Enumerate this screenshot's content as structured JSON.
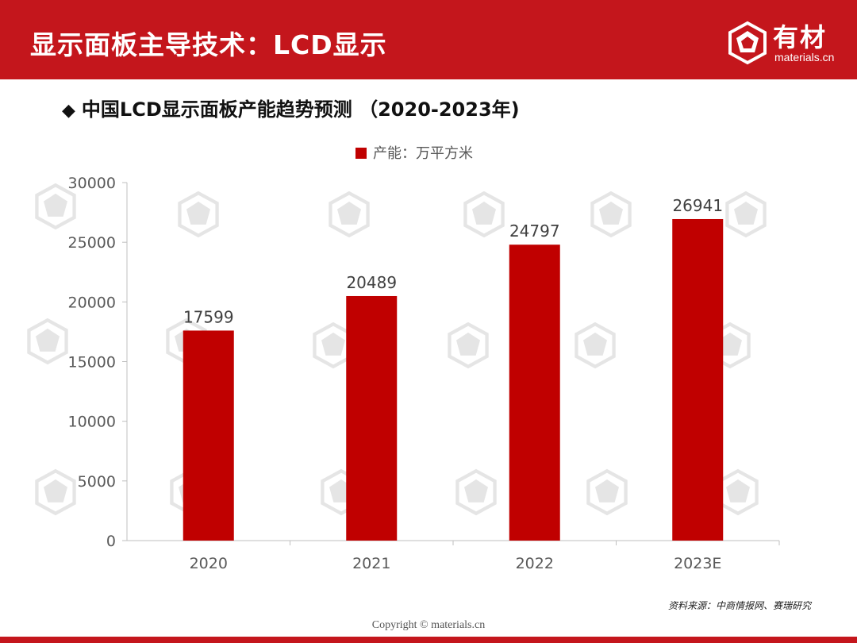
{
  "header": {
    "title": "显示面板主导技术：LCD显示",
    "logo_cn": "有材",
    "logo_en": "materials.cn"
  },
  "subtitle": {
    "marker": "◆",
    "text": "中国LCD显示面板产能趋势预测 （2020-2023年)"
  },
  "colors": {
    "brand": "#c4161c",
    "bar": "#c00000",
    "axis": "#bfbfbf",
    "tick_text": "#595959"
  },
  "chart_data": {
    "type": "bar",
    "title": "",
    "categories": [
      "2020",
      "2021",
      "2022",
      "2023E"
    ],
    "series": [
      {
        "name": "产能：万平方米",
        "values": [
          17599,
          20489,
          24797,
          26941
        ]
      }
    ],
    "data_labels": [
      "17599",
      "20489",
      "24797",
      "26941"
    ],
    "yticks": [
      "0",
      "5000",
      "10000",
      "15000",
      "20000",
      "25000",
      "30000"
    ],
    "ylim": [
      0,
      30000
    ],
    "xlabel": "",
    "ylabel": "",
    "legend": {
      "position": "top-center",
      "label": "产能：万平方米"
    },
    "grid": false
  },
  "source": "资料来源：中商情报网、赛瑞研究",
  "copyright": "Copyright © materials.cn"
}
